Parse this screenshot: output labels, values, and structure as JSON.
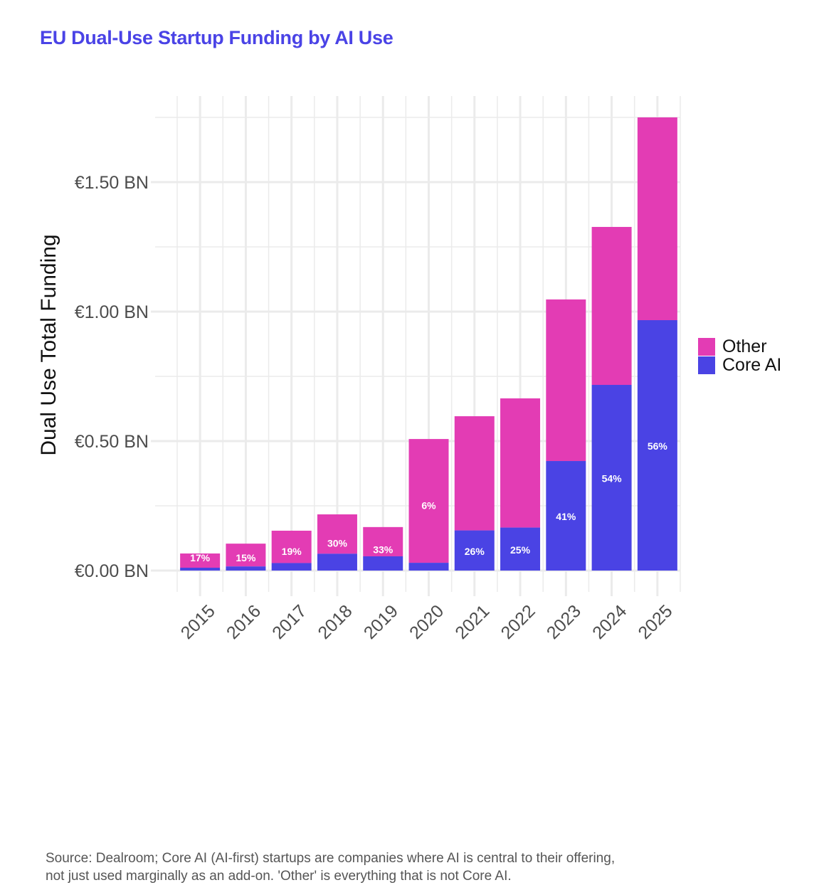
{
  "title": "EU Dual-Use Startup Funding by AI Use",
  "footer": {
    "line1": "Source: Dealroom; Core AI (AI-first) startups are companies where AI is central to their offering,",
    "line2": "not just used marginally as an add-on. 'Other' is everything that is not Core AI."
  },
  "colors": {
    "title": "#4a43e6",
    "other": "#e33cb4",
    "core_ai": "#4a43e4",
    "grid": "#ebebeb"
  },
  "legend": [
    {
      "label": "Other",
      "color": "#e33cb4"
    },
    {
      "label": "Core AI",
      "color": "#4a43e4"
    }
  ],
  "chart_data": {
    "type": "bar",
    "stacked": true,
    "title": "EU Dual-Use Startup Funding by AI Use",
    "xlabel": "",
    "ylabel": "Dual Use Total Funding",
    "categories": [
      "2015",
      "2016",
      "2017",
      "2018",
      "2019",
      "2020",
      "2021",
      "2022",
      "2023",
      "2024",
      "2025"
    ],
    "series": [
      {
        "name": "Core AI",
        "color": "#4a43e4",
        "values": [
          0.011,
          0.016,
          0.029,
          0.065,
          0.055,
          0.03,
          0.155,
          0.166,
          0.423,
          0.717,
          0.967
        ]
      },
      {
        "name": "Other",
        "color": "#e33cb4",
        "values": [
          0.055,
          0.088,
          0.125,
          0.152,
          0.113,
          0.478,
          0.441,
          0.499,
          0.624,
          0.61,
          0.783
        ]
      }
    ],
    "totals": [
      0.066,
      0.104,
      0.154,
      0.217,
      0.168,
      0.508,
      0.596,
      0.665,
      1.047,
      1.327,
      1.75
    ],
    "data_labels": [
      "17%",
      "15%",
      "19%",
      "30%",
      "33%",
      "6%",
      "26%",
      "25%",
      "41%",
      "54%",
      "56%"
    ],
    "units": "EUR billions",
    "ylim": [
      -0.08,
      1.83
    ],
    "yticks": [
      0,
      0.5,
      1.0,
      1.5
    ],
    "ytick_labels": [
      "€0.00 BN",
      "€0.50 BN",
      "€1.00 BN",
      "€1.50 BN"
    ],
    "minor_gridlines": [
      0.25,
      0.75,
      1.25,
      1.75
    ],
    "grid": true,
    "legend_position": "right",
    "xtick_rotation_deg": 45
  }
}
